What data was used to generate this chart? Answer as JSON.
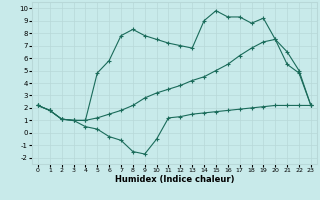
{
  "xlabel": "Humidex (Indice chaleur)",
  "bg_color": "#c8eaea",
  "grid_color": "#b8d8d8",
  "line_color": "#1a6b5a",
  "xlim": [
    -0.5,
    23.5
  ],
  "ylim": [
    -2.5,
    10.5
  ],
  "xticks": [
    0,
    1,
    2,
    3,
    4,
    5,
    6,
    7,
    8,
    9,
    10,
    11,
    12,
    13,
    14,
    15,
    16,
    17,
    18,
    19,
    20,
    21,
    22,
    23
  ],
  "yticks": [
    -2,
    -1,
    0,
    1,
    2,
    3,
    4,
    5,
    6,
    7,
    8,
    9,
    10
  ],
  "line1_x": [
    0,
    1,
    2,
    3,
    4,
    5,
    6,
    7,
    8,
    9,
    10,
    11,
    12,
    13,
    14,
    15,
    16,
    17,
    18,
    19,
    20,
    21,
    22,
    23
  ],
  "line1_y": [
    2.2,
    1.8,
    1.1,
    1.0,
    0.5,
    0.3,
    -0.3,
    -0.6,
    -1.5,
    -1.7,
    -0.5,
    1.2,
    1.3,
    1.5,
    1.6,
    1.7,
    1.8,
    1.9,
    2.0,
    2.1,
    2.2,
    2.2,
    2.2,
    2.2
  ],
  "line2_x": [
    0,
    1,
    2,
    3,
    4,
    5,
    6,
    7,
    8,
    9,
    10,
    11,
    12,
    13,
    14,
    15,
    16,
    17,
    18,
    19,
    20,
    21,
    22,
    23
  ],
  "line2_y": [
    2.2,
    1.8,
    1.1,
    1.0,
    1.0,
    1.2,
    1.5,
    1.8,
    2.2,
    2.8,
    3.2,
    3.5,
    3.8,
    4.2,
    4.5,
    5.0,
    5.5,
    6.2,
    6.8,
    7.3,
    7.5,
    6.5,
    5.0,
    2.2
  ],
  "line3_x": [
    0,
    1,
    2,
    3,
    4,
    5,
    6,
    7,
    8,
    9,
    10,
    11,
    12,
    13,
    14,
    15,
    16,
    17,
    18,
    19,
    20,
    21,
    22,
    23
  ],
  "line3_y": [
    2.2,
    1.8,
    1.1,
    1.0,
    1.0,
    4.8,
    5.8,
    7.8,
    8.3,
    7.8,
    7.5,
    7.2,
    7.0,
    6.8,
    9.0,
    9.8,
    9.3,
    9.3,
    8.8,
    9.2,
    7.5,
    5.5,
    4.8,
    2.2
  ]
}
